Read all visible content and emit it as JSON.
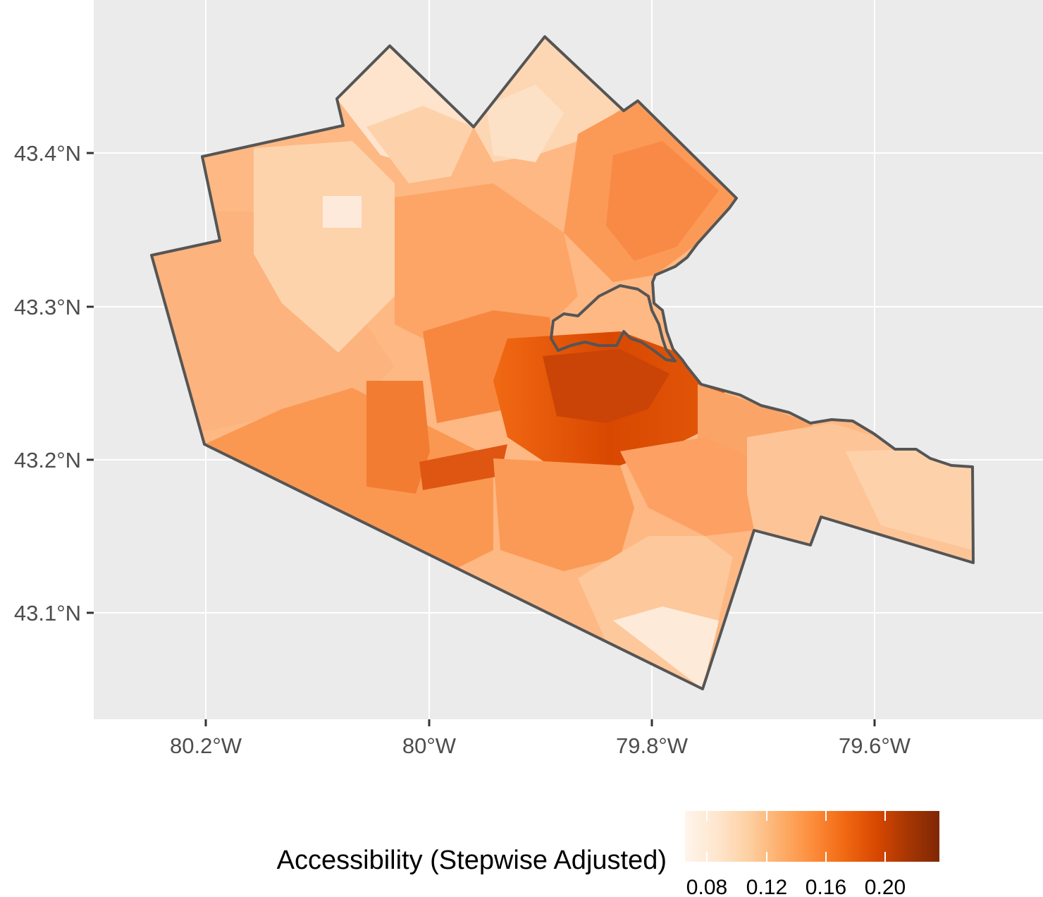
{
  "map": {
    "lat_ticks": [
      "43.4°N",
      "43.3°N",
      "43.2°N",
      "43.1°N"
    ],
    "lon_ticks": [
      "80.2°W",
      "80°W",
      "79.8°W",
      "79.6°W"
    ],
    "colors": {
      "panel_background": "#ebebeb",
      "gridline": "#ffffff",
      "boundary": "#555555",
      "low": "#fee9d6",
      "mid": "#fdae6b",
      "high": "#7f2704"
    },
    "legend": {
      "title": "Accessibility (Stepwise Adjusted)",
      "ticks": [
        "0.08",
        "0.12",
        "0.16",
        "0.20"
      ],
      "gradient": [
        "#fff5eb",
        "#fee6ce",
        "#fdd0a2",
        "#fdae6b",
        "#fd8d3c",
        "#f16913",
        "#d94801",
        "#a63603",
        "#7f2704"
      ]
    }
  }
}
